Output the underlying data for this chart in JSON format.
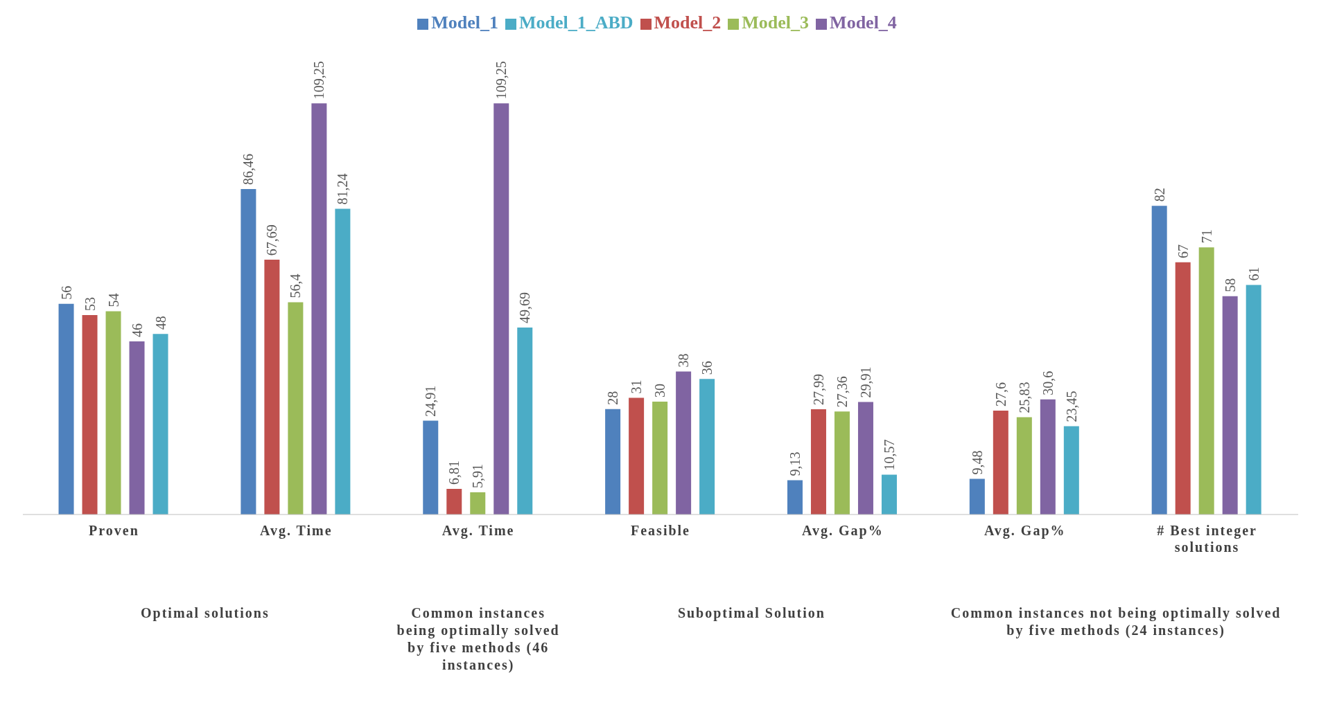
{
  "chart_data": {
    "type": "bar",
    "categories": [
      "Proven",
      "Avg. Time",
      "Avg. Time",
      "Feasible",
      "Avg. Gap%",
      "Avg. Gap%",
      "# Best integer solutions"
    ],
    "series": [
      {
        "name": "Model_1",
        "color": "#4f81bd",
        "values": [
          56,
          86.46,
          24.91,
          28,
          9.13,
          9.48,
          82
        ],
        "value_labels": [
          "56",
          "86,46",
          "24,91",
          "28",
          "9,13",
          "9,48",
          "82"
        ]
      },
      {
        "name": "Model_2",
        "color": "#c0504d",
        "values": [
          53,
          67.69,
          6.81,
          31,
          27.99,
          27.6,
          67
        ],
        "value_labels": [
          "53",
          "67,69",
          "6,81",
          "31",
          "27,99",
          "27,6",
          "67"
        ]
      },
      {
        "name": "Model_3",
        "color": "#9bbb59",
        "values": [
          54,
          56.4,
          5.91,
          30,
          27.36,
          25.83,
          71
        ],
        "value_labels": [
          "54",
          "56,4",
          "5,91",
          "30",
          "27,36",
          "25,83",
          "71"
        ]
      },
      {
        "name": "Model_4",
        "color": "#8064a2",
        "values": [
          46,
          109.25,
          109.25,
          38,
          29.91,
          30.6,
          58
        ],
        "value_labels": [
          "46",
          "109,25",
          "109,25",
          "38",
          "29,91",
          "30,6",
          "58"
        ]
      },
      {
        "name": "Model_1_ABD",
        "color": "#4bacc6",
        "values": [
          48,
          81.24,
          49.69,
          36,
          10.57,
          23.45,
          61
        ],
        "value_labels": [
          "48",
          "81,24",
          "49,69",
          "36",
          "10,57",
          "23,45",
          "61"
        ]
      }
    ],
    "annotations": [
      "Optimal solutions",
      "Common instances being optimally solved by five methods (46 instances)",
      "Suboptimal Solution",
      "Common instances not being optimally solved by five methods (24 instances)"
    ],
    "legend": "top"
  }
}
